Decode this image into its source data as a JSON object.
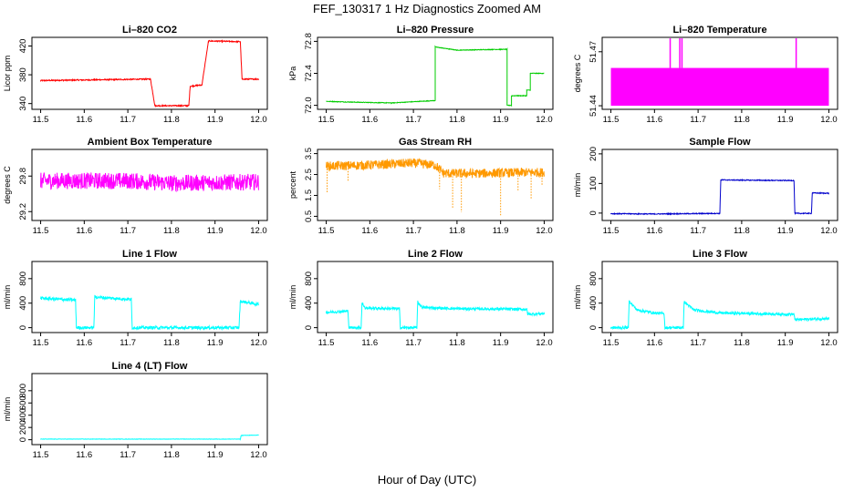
{
  "figure": {
    "title": "FEF_130317  1 Hz Diagnostics Zoomed AM",
    "xlabel": "Hour of Day (UTC)"
  },
  "chart_data": [
    {
      "type": "line",
      "title": "Li–820 CO2",
      "ylabel": "Licor ppm",
      "color": "#ff0000",
      "xlim": [
        11.48,
        12.02
      ],
      "ylim": [
        332,
        432
      ],
      "xticks": [
        "11.5",
        "11.6",
        "11.7",
        "11.8",
        "11.9",
        "12.0"
      ],
      "yticks": [
        "340",
        "380",
        "420"
      ],
      "x": [
        11.5,
        11.752,
        11.752,
        11.762,
        11.762,
        11.84,
        11.84,
        11.843,
        11.843,
        11.87,
        11.87,
        11.885,
        11.885,
        11.958,
        11.958,
        11.962,
        11.962,
        12.0
      ],
      "y": [
        372,
        374,
        374,
        337,
        337,
        337,
        337,
        364,
        364,
        366,
        366,
        427,
        427,
        426,
        426,
        374,
        374,
        374
      ],
      "noise": 0.8
    },
    {
      "type": "line",
      "title": "Li–820 Pressure",
      "ylabel": "kPa",
      "color": "#00cc00",
      "xlim": [
        11.48,
        12.02
      ],
      "ylim": [
        71.95,
        72.85
      ],
      "xticks": [
        "11.5",
        "11.6",
        "11.7",
        "11.8",
        "11.9",
        "12.0"
      ],
      "yticks": [
        "72.0",
        "72.4",
        "72.8"
      ],
      "x": [
        11.5,
        11.56,
        11.65,
        11.75,
        11.75,
        11.8,
        11.9,
        11.915,
        11.915,
        11.925,
        11.925,
        11.96,
        11.96,
        11.968,
        11.968,
        12.0
      ],
      "y": [
        72.05,
        72.04,
        72.03,
        72.06,
        72.73,
        72.69,
        72.7,
        72.7,
        72.0,
        72.0,
        72.12,
        72.12,
        72.19,
        72.19,
        72.4,
        72.4
      ],
      "noise": 0.004
    },
    {
      "type": "line",
      "title": "Li–820 Temperature",
      "ylabel": "degrees C",
      "color": "#ff00ff",
      "xlim": [
        11.48,
        12.02
      ],
      "ylim": [
        51.438,
        51.478
      ],
      "xticks": [
        "11.5",
        "11.6",
        "11.7",
        "11.8",
        "11.9",
        "12.0"
      ],
      "yticks": [
        "51.44",
        "51.47"
      ],
      "x": [
        11.5,
        12.0
      ],
      "y": [
        51.455,
        51.455
      ],
      "band": [
        51.44,
        51.461
      ],
      "spikes": [
        [
          11.636,
          51.478
        ],
        [
          11.658,
          51.478
        ],
        [
          11.663,
          51.478
        ],
        [
          11.925,
          51.478
        ]
      ],
      "noise": 0
    },
    {
      "type": "line",
      "title": "Ambient Box Temperature",
      "ylabel": "degrees C",
      "color": "#ff00ff",
      "xlim": [
        11.48,
        12.02
      ],
      "ylim": [
        29.05,
        30.25
      ],
      "xticks": [
        "11.5",
        "11.6",
        "11.7",
        "11.8",
        "11.9",
        "12.0"
      ],
      "yticks": [
        "29.2",
        "29.8"
      ],
      "x": [
        11.5,
        11.7,
        11.8,
        12.0
      ],
      "y": [
        29.72,
        29.72,
        29.68,
        29.7
      ],
      "noise": 0.14
    },
    {
      "type": "line",
      "title": "Gas Stream RH",
      "ylabel": "percent",
      "color": "#ff9900",
      "xlim": [
        11.48,
        12.02
      ],
      "ylim": [
        0.3,
        3.7
      ],
      "xticks": [
        "11.5",
        "11.6",
        "11.7",
        "11.8",
        "11.9",
        "12.0"
      ],
      "yticks": [
        "0.5",
        "1.5",
        "2.5",
        "3.5"
      ],
      "x": [
        11.5,
        11.6,
        11.7,
        11.75,
        11.77,
        11.85,
        11.95,
        12.0
      ],
      "y": [
        2.9,
        2.95,
        3.05,
        2.95,
        2.55,
        2.55,
        2.6,
        2.6
      ],
      "dips": [
        [
          11.502,
          1.6
        ],
        [
          11.55,
          2.2
        ],
        [
          11.76,
          1.8
        ],
        [
          11.79,
          0.9
        ],
        [
          11.81,
          0.7
        ],
        [
          11.9,
          0.5
        ],
        [
          11.94,
          1.7
        ],
        [
          11.97,
          1.3
        ],
        [
          11.995,
          2.0
        ]
      ],
      "noise": 0.22
    },
    {
      "type": "line",
      "title": "Sample Flow",
      "ylabel": "ml/min",
      "color": "#0000cc",
      "xlim": [
        11.48,
        12.02
      ],
      "ylim": [
        -25,
        215
      ],
      "xticks": [
        "11.5",
        "11.6",
        "11.7",
        "11.8",
        "11.9",
        "12.0"
      ],
      "yticks": [
        "0",
        "100",
        "200"
      ],
      "x": [
        11.5,
        11.6,
        11.75,
        11.752,
        11.9,
        11.92,
        11.922,
        11.96,
        11.962,
        12.0
      ],
      "y": [
        -2,
        -3,
        -1,
        112,
        110,
        110,
        -1,
        -1,
        68,
        67
      ],
      "noise": 1.5
    },
    {
      "type": "line",
      "title": "Line 1 Flow",
      "ylabel": "ml/min",
      "color": "#00ffff",
      "xlim": [
        11.48,
        12.02
      ],
      "ylim": [
        -80,
        1080
      ],
      "xticks": [
        "11.5",
        "11.6",
        "11.7",
        "11.8",
        "11.9",
        "12.0"
      ],
      "yticks": [
        "0",
        "400",
        "800"
      ],
      "x": [
        11.5,
        11.58,
        11.582,
        11.622,
        11.624,
        11.708,
        11.71,
        11.955,
        11.958,
        12.0
      ],
      "y": [
        480,
        450,
        0,
        0,
        500,
        460,
        0,
        0,
        430,
        380
      ],
      "noise": 25
    },
    {
      "type": "line",
      "title": "Line 2 Flow",
      "ylabel": "ml/min",
      "color": "#00ffff",
      "xlim": [
        11.48,
        12.02
      ],
      "ylim": [
        -80,
        1080
      ],
      "xticks": [
        "11.5",
        "11.6",
        "11.7",
        "11.8",
        "11.9",
        "12.0"
      ],
      "yticks": [
        "0",
        "400",
        "800"
      ],
      "x": [
        11.5,
        11.55,
        11.552,
        11.58,
        11.582,
        11.59,
        11.668,
        11.67,
        11.708,
        11.71,
        11.72,
        11.8,
        11.96,
        11.962,
        12.0
      ],
      "y": [
        250,
        270,
        0,
        0,
        400,
        320,
        310,
        0,
        0,
        420,
        330,
        310,
        300,
        220,
        230
      ],
      "noise": 22
    },
    {
      "type": "line",
      "title": "Line 3 Flow",
      "ylabel": "ml/min",
      "color": "#00ffff",
      "xlim": [
        11.48,
        12.02
      ],
      "ylim": [
        -80,
        1080
      ],
      "xticks": [
        "11.5",
        "11.6",
        "11.7",
        "11.8",
        "11.9",
        "12.0"
      ],
      "yticks": [
        "0",
        "400",
        "800"
      ],
      "x": [
        11.5,
        11.54,
        11.542,
        11.56,
        11.6,
        11.622,
        11.624,
        11.666,
        11.668,
        11.69,
        11.75,
        11.9,
        11.92,
        11.922,
        12.0
      ],
      "y": [
        0,
        0,
        430,
        290,
        240,
        230,
        0,
        0,
        420,
        290,
        240,
        220,
        220,
        130,
        150
      ],
      "noise": 22
    },
    {
      "type": "line",
      "title": "Line 4 (LT) Flow",
      "ylabel": "ml/min",
      "color": "#00ffff",
      "xlim": [
        11.48,
        12.02
      ],
      "ylim": [
        -80,
        1080
      ],
      "xticks": [
        "11.5",
        "11.6",
        "11.7",
        "11.8",
        "11.9",
        "12.0"
      ],
      "yticks": [
        "0",
        "200",
        "400",
        "600",
        "800"
      ],
      "x": [
        11.5,
        11.958,
        11.96,
        12.0
      ],
      "y": [
        10,
        10,
        70,
        75
      ],
      "noise": 3
    }
  ]
}
